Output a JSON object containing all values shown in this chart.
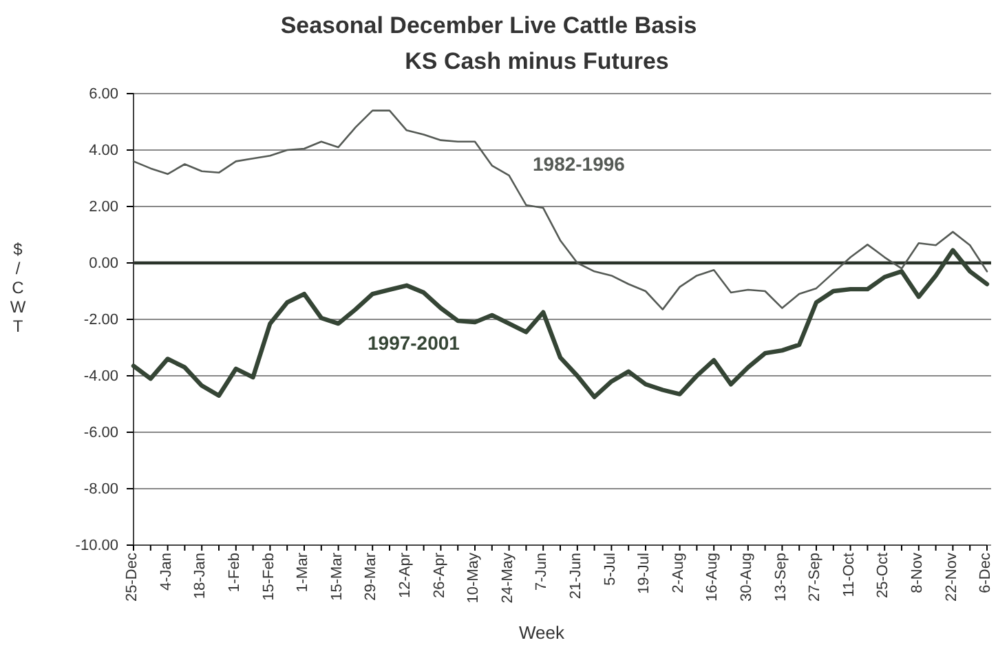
{
  "chart_data": {
    "type": "line",
    "title": "Seasonal December Live Cattle Basis",
    "subtitle": "KS Cash minus Futures",
    "xlabel": "Week",
    "ylabel": "$/CWT",
    "categories": [
      "25-Dec",
      null,
      "4-Jan",
      null,
      "18-Jan",
      null,
      "1-Feb",
      null,
      "15-Feb",
      null,
      "1-Mar",
      null,
      "15-Mar",
      null,
      "29-Mar",
      null,
      "12-Apr",
      null,
      "26-Apr",
      null,
      "10-May",
      null,
      "24-May",
      null,
      "7-Jun",
      null,
      "21-Jun",
      null,
      "5-Jul",
      null,
      "19-Jul",
      null,
      "2-Aug",
      null,
      "16-Aug",
      null,
      "30-Aug",
      null,
      "13-Sep",
      null,
      "27-Sep",
      null,
      "11-Oct",
      null,
      "25-Oct",
      null,
      "8-Nov",
      null,
      "22-Nov",
      null,
      "6-Dec"
    ],
    "series": [
      {
        "name": "1982-1996",
        "color": "#555a55",
        "values": [
          3.6,
          3.35,
          3.15,
          3.5,
          3.25,
          3.2,
          3.6,
          3.7,
          3.8,
          4.0,
          4.05,
          4.3,
          4.1,
          4.8,
          5.4,
          5.4,
          4.7,
          4.55,
          4.35,
          4.3,
          4.3,
          3.45,
          3.1,
          2.05,
          1.95,
          0.8,
          0.0,
          -0.3,
          -0.45,
          -0.75,
          -1.0,
          -1.65,
          -0.85,
          -0.45,
          -0.25,
          -1.05,
          -0.95,
          -1.0,
          -1.6,
          -1.1,
          -0.9,
          -0.35,
          0.2,
          0.65,
          0.2,
          -0.2,
          0.7,
          0.63,
          1.1,
          0.63,
          -0.3
        ]
      },
      {
        "name": "1997-2001",
        "color": "#354535",
        "values": [
          -3.65,
          -4.1,
          -3.4,
          -3.7,
          -4.35,
          -4.7,
          -3.75,
          -4.05,
          -2.15,
          -1.4,
          -1.1,
          -1.95,
          -2.15,
          -1.65,
          -1.1,
          -0.95,
          -0.8,
          -1.05,
          -1.6,
          -2.05,
          -2.1,
          -1.85,
          -2.15,
          -2.45,
          -1.75,
          -3.35,
          -4.0,
          -4.75,
          -4.2,
          -3.85,
          -4.3,
          -4.5,
          -4.65,
          -4.0,
          -3.45,
          -4.3,
          -3.7,
          -3.2,
          -3.1,
          -2.9,
          -1.4,
          -1.0,
          -0.93,
          -0.93,
          -0.5,
          -0.3,
          -1.2,
          -0.45,
          0.45,
          -0.3,
          -0.75
        ]
      }
    ],
    "ylim": [
      -10,
      6
    ],
    "yticks": [
      {
        "value": -10,
        "label": "-10.00"
      },
      {
        "value": -8,
        "label": "-8.00"
      },
      {
        "value": -6,
        "label": "-6.00"
      },
      {
        "value": -4,
        "label": "-4.00"
      },
      {
        "value": -2,
        "label": "-2.00"
      },
      {
        "value": 0,
        "label": "0.00"
      },
      {
        "value": 2,
        "label": "2.00"
      },
      {
        "value": 4,
        "label": "4.00"
      },
      {
        "value": 6,
        "label": "6.00"
      }
    ],
    "grid": "y",
    "marker": "none",
    "line_style": "solid",
    "ref_lines": [
      {
        "axis": "y",
        "value": 0,
        "color": "#2a332a"
      }
    ]
  }
}
